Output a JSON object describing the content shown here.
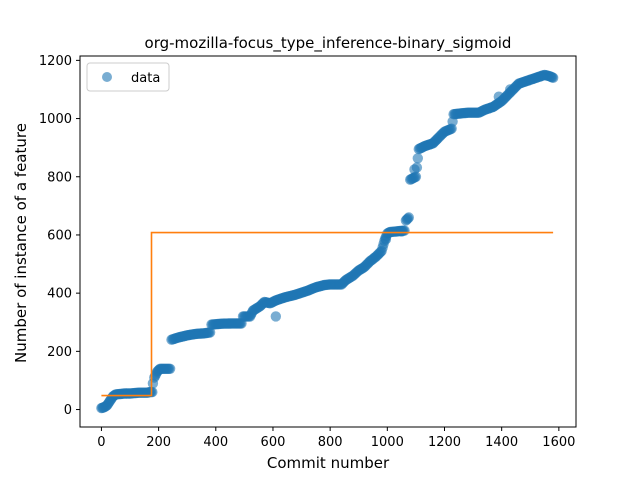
{
  "chart_data": {
    "type": "scatter",
    "title": "org-mozilla-focus_type_inference-binary_sigmoid",
    "xlabel": "Commit number",
    "ylabel": "Number of instance of a feature",
    "xlim": [
      -75,
      1660
    ],
    "ylim": [
      -60,
      1215
    ],
    "xticks": [
      "0",
      "200",
      "400",
      "600",
      "800",
      "1000",
      "1200",
      "1400",
      "1600"
    ],
    "yticks": [
      "0",
      "200",
      "400",
      "600",
      "800",
      "1000",
      "1200"
    ],
    "legend": {
      "entries": [
        "data"
      ],
      "placement": "upper-left"
    },
    "colors": {
      "data": "#1f77b4",
      "fit": "#ff7f0e"
    },
    "grid": false,
    "series": [
      {
        "name": "data",
        "kind": "scatter",
        "anchors": [
          [
            0,
            5
          ],
          [
            10,
            8
          ],
          [
            20,
            15
          ],
          [
            30,
            30
          ],
          [
            40,
            45
          ],
          [
            50,
            52
          ],
          [
            80,
            55
          ],
          [
            100,
            55
          ],
          [
            130,
            58
          ],
          [
            160,
            58
          ],
          [
            170,
            60
          ],
          [
            178,
            60
          ],
          [
            180,
            90
          ],
          [
            185,
            110
          ],
          [
            195,
            130
          ],
          [
            205,
            140
          ],
          [
            220,
            140
          ],
          [
            240,
            140
          ],
          [
            245,
            240
          ],
          [
            270,
            248
          ],
          [
            300,
            255
          ],
          [
            330,
            260
          ],
          [
            360,
            262
          ],
          [
            380,
            265
          ],
          [
            385,
            292
          ],
          [
            420,
            295
          ],
          [
            460,
            296
          ],
          [
            490,
            296
          ],
          [
            495,
            320
          ],
          [
            520,
            320
          ],
          [
            530,
            340
          ],
          [
            555,
            355
          ],
          [
            570,
            370
          ],
          [
            590,
            365
          ],
          [
            610,
            375
          ],
          [
            640,
            385
          ],
          [
            680,
            395
          ],
          [
            720,
            408
          ],
          [
            750,
            420
          ],
          [
            780,
            428
          ],
          [
            800,
            430
          ],
          [
            840,
            430
          ],
          [
            855,
            445
          ],
          [
            880,
            460
          ],
          [
            900,
            478
          ],
          [
            920,
            490
          ],
          [
            940,
            510
          ],
          [
            960,
            525
          ],
          [
            980,
            545
          ],
          [
            990,
            580
          ],
          [
            1000,
            605
          ],
          [
            1010,
            610
          ],
          [
            1030,
            612
          ],
          [
            1060,
            615
          ],
          [
            1065,
            650
          ],
          [
            1075,
            660
          ],
          [
            1080,
            790
          ],
          [
            1100,
            800
          ],
          [
            1110,
            895
          ],
          [
            1130,
            905
          ],
          [
            1160,
            915
          ],
          [
            1175,
            930
          ],
          [
            1200,
            955
          ],
          [
            1225,
            965
          ],
          [
            1232,
            1015
          ],
          [
            1280,
            1020
          ],
          [
            1320,
            1020
          ],
          [
            1340,
            1030
          ],
          [
            1370,
            1040
          ],
          [
            1400,
            1060
          ],
          [
            1420,
            1080
          ],
          [
            1440,
            1100
          ],
          [
            1460,
            1120
          ],
          [
            1490,
            1130
          ],
          [
            1520,
            1140
          ],
          [
            1550,
            1150
          ],
          [
            1570,
            1145
          ],
          [
            1580,
            1140
          ]
        ],
        "outliers": [
          [
            610,
            320
          ],
          [
            1095,
            825
          ],
          [
            1050,
            612
          ],
          [
            995,
            585
          ],
          [
            1390,
            1075
          ],
          [
            1430,
            1100
          ]
        ]
      },
      {
        "name": "",
        "kind": "step-line",
        "points": [
          [
            0,
            48
          ],
          [
            175,
            48
          ],
          [
            175,
            608
          ],
          [
            1580,
            608
          ]
        ]
      }
    ]
  }
}
